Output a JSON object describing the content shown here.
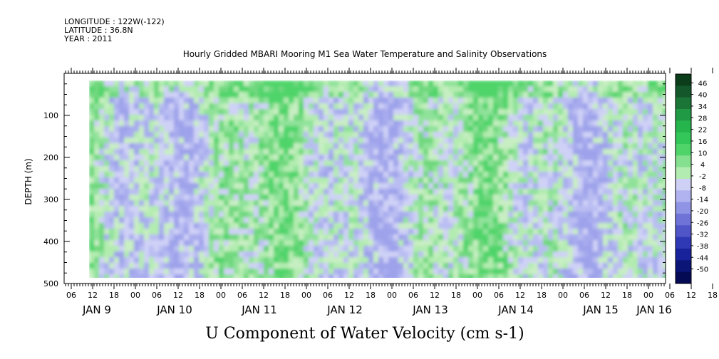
{
  "header": {
    "longitude": "LONGITUDE : 122W(-122)",
    "latitude": "LATITUDE : 36.8N",
    "year": "YEAR : 2011"
  },
  "chart_data": {
    "type": "heatmap",
    "title": "Hourly Gridded MBARI Mooring M1 Sea Water Temperature and Salinity Observations",
    "xlabel": "U Component of Water Velocity (cm s-1)",
    "ylabel": "DEPTH (m)",
    "ylim": [
      500,
      0
    ],
    "y_ticks": [
      "100",
      "200",
      "300",
      "400",
      "500"
    ],
    "x_hour_ticks": [
      "06",
      "12",
      "18",
      "00",
      "06",
      "12",
      "18",
      "00",
      "06",
      "12",
      "18",
      "00",
      "06",
      "12",
      "18",
      "00",
      "06",
      "12",
      "18",
      "00",
      "06",
      "12",
      "18",
      "00",
      "06",
      "12",
      "18",
      "00",
      "06",
      "12",
      "18",
      "00"
    ],
    "x_day_labels": [
      "JAN 9",
      "JAN 10",
      "JAN 11",
      "JAN 12",
      "JAN 13",
      "JAN 14",
      "JAN 15",
      "JAN 16"
    ],
    "colorbar": {
      "labels": [
        "46",
        "40",
        "34",
        "28",
        "22",
        "16",
        "10",
        "4",
        "-2",
        "-8",
        "-14",
        "-20",
        "-26",
        "-32",
        "-38",
        "-44",
        "-50"
      ],
      "colors": [
        "#0c3d1a",
        "#13572a",
        "#1b7536",
        "#209a44",
        "#26b44d",
        "#33c659",
        "#4fd46a",
        "#84e08f",
        "#b3ecb0",
        "#cfd0f5",
        "#b0b3ef",
        "#9094e4",
        "#6f73d8",
        "#5056c8",
        "#3039b5",
        "#18229a",
        "#0b1577",
        "#050a55"
      ]
    }
  }
}
